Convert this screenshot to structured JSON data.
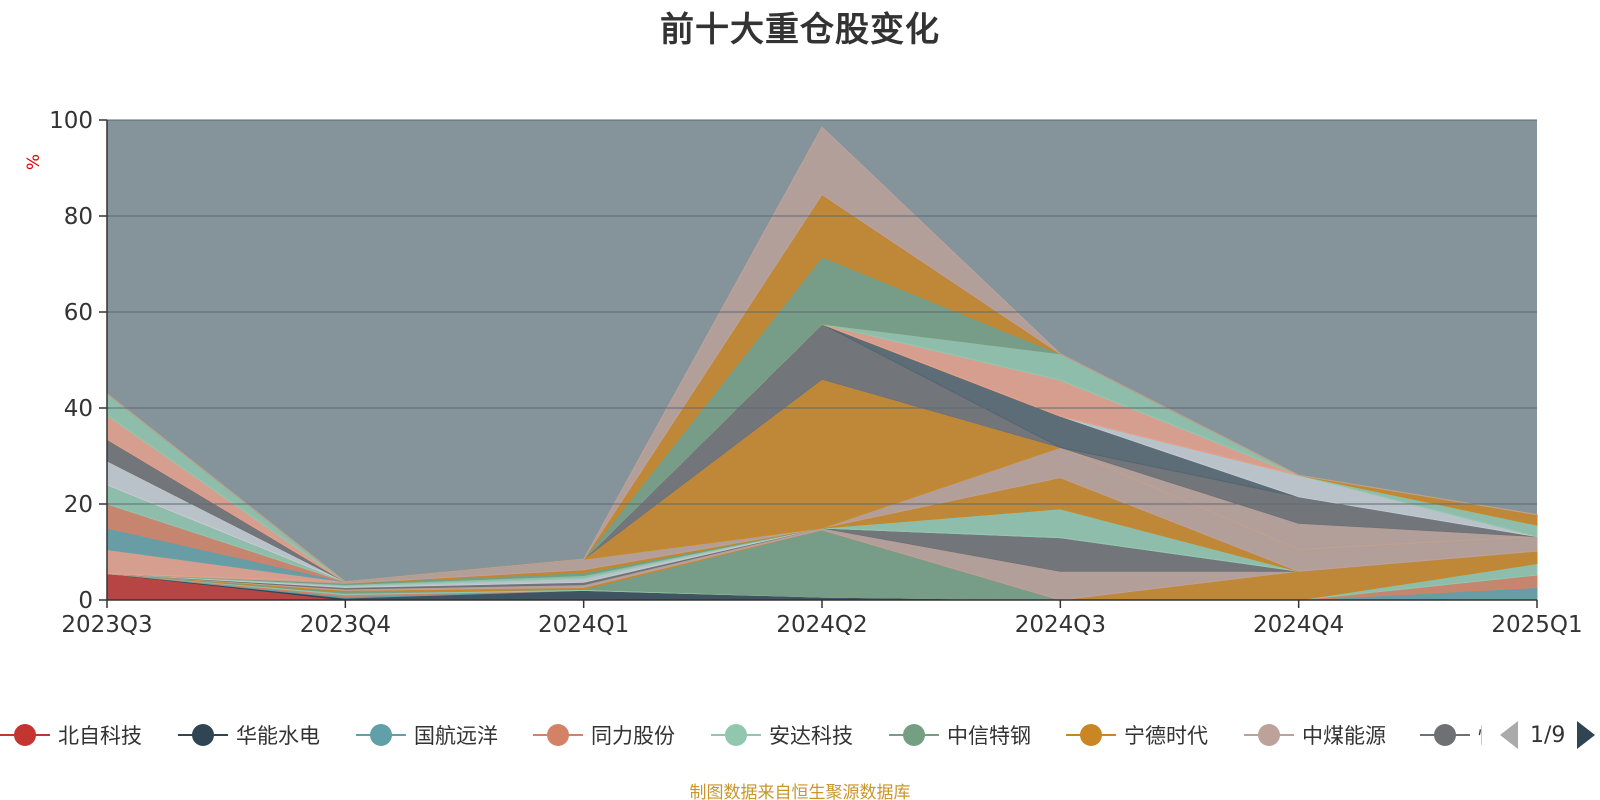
{
  "title": "前十大重仓股变化",
  "source_note": "制图数据来自恒生聚源数据库",
  "chart_data": {
    "type": "area",
    "stacked": true,
    "ylabel": "%",
    "ylim": [
      0,
      100
    ],
    "yticks": [
      0,
      20,
      40,
      60,
      80,
      100
    ],
    "grid": true,
    "x": [
      "2023Q3",
      "2023Q4",
      "2024Q1",
      "2024Q2",
      "2024Q3",
      "2024Q4",
      "2025Q1"
    ],
    "background_color": "#85939a",
    "series": [
      {
        "name": "北自科技",
        "color": "#c23531",
        "values": [
          5.5,
          0,
          0,
          0,
          0,
          0,
          0
        ]
      },
      {
        "name": "华能水电",
        "color": "#2f4554",
        "values": [
          0,
          0.4,
          2.0,
          0.6,
          0,
          0,
          0
        ]
      },
      {
        "name": "国航远洋",
        "color": "#61a0a8",
        "values": [
          0,
          0.3,
          0,
          0,
          0,
          0,
          2.6
        ]
      },
      {
        "name": "同力股份",
        "color": "#d48265",
        "values": [
          0,
          0.4,
          0,
          0,
          0,
          0,
          2.6
        ]
      },
      {
        "name": "安达科技",
        "color": "#91c7ae",
        "values": [
          0,
          0.3,
          0.2,
          0,
          0,
          0,
          2.4
        ]
      },
      {
        "name": "中信特钢",
        "color": "#749f83",
        "values": [
          0,
          0.3,
          0,
          14.0,
          0,
          0,
          0
        ]
      },
      {
        "name": "宁德时代",
        "color": "#ca8622",
        "values": [
          0,
          0.3,
          0.4,
          0,
          0,
          6.0,
          2.6
        ]
      },
      {
        "name": "中煤能源",
        "color": "#bda29a",
        "values": [
          0,
          0.3,
          0.6,
          0.4,
          6.0,
          0,
          0
        ]
      },
      {
        "name": "",
        "color": "#6e7074",
        "values": [
          0,
          0.3,
          0.5,
          0,
          7.0,
          0,
          0
        ]
      },
      {
        "name": "",
        "color": "#546570",
        "values": [
          0,
          0,
          0,
          0,
          0,
          0,
          0
        ]
      },
      {
        "name": "",
        "color": "#c4ccd3",
        "values": [
          0,
          0.3,
          0.8,
          0,
          0,
          0,
          0
        ]
      },
      {
        "name": "",
        "color": "#91c7ae",
        "values": [
          0,
          0.3,
          0.6,
          0,
          6.0,
          0,
          0
        ]
      },
      {
        "name": "",
        "color": "#749f83",
        "values": [
          0,
          0.3,
          0.6,
          0,
          0,
          0,
          0
        ]
      },
      {
        "name": "",
        "color": "#ca8622",
        "values": [
          0,
          0,
          0.6,
          0,
          6.5,
          0,
          0
        ]
      },
      {
        "name": "",
        "color": "#bda29a",
        "values": [
          0,
          0.3,
          2.2,
          0,
          6.3,
          4.5,
          3.0
        ]
      },
      {
        "name": "",
        "color": "#6e7074",
        "values": [
          0,
          0,
          0,
          0,
          0,
          0,
          0
        ]
      },
      {
        "name": "",
        "color": "#e7a18b",
        "values": [
          5.0,
          0,
          0,
          0,
          0,
          0,
          0
        ]
      },
      {
        "name": "",
        "color": "#61a0a8",
        "values": [
          4.5,
          0,
          0,
          0,
          0,
          0,
          0
        ]
      },
      {
        "name": "",
        "color": "#d48265",
        "values": [
          5.0,
          0,
          0,
          0,
          0,
          0,
          0
        ]
      },
      {
        "name": "",
        "color": "#91c7ae",
        "values": [
          4.0,
          0,
          0,
          0,
          0,
          0,
          0
        ]
      },
      {
        "name": "",
        "color": "#749f83",
        "values": [
          0,
          0,
          0,
          0,
          0,
          0,
          0
        ]
      },
      {
        "name": "",
        "color": "#ca8622",
        "values": [
          0,
          0,
          0,
          31.0,
          0,
          0,
          0
        ]
      },
      {
        "name": "",
        "color": "#bda29a",
        "values": [
          0,
          0,
          0,
          0,
          0,
          5.5,
          0
        ]
      },
      {
        "name": "",
        "color": "#6e7074",
        "values": [
          0,
          0,
          0,
          11.5,
          0,
          5.5,
          0
        ]
      },
      {
        "name": "",
        "color": "#546570",
        "values": [
          0,
          0,
          0,
          0,
          6.5,
          0,
          0
        ]
      },
      {
        "name": "",
        "color": "#c4ccd3",
        "values": [
          0,
          0,
          0,
          0,
          0,
          4.5,
          0
        ]
      },
      {
        "name": "",
        "color": "#91c7ae",
        "values": [
          0,
          0,
          0,
          0,
          0,
          0,
          2.4
        ]
      },
      {
        "name": "",
        "color": "#749f83",
        "values": [
          0,
          0,
          0,
          0,
          0,
          0,
          0
        ]
      },
      {
        "name": "",
        "color": "#ca8622",
        "values": [
          0,
          0,
          0,
          0,
          0,
          0,
          2.2
        ]
      },
      {
        "name": "",
        "color": "#bda29a",
        "values": [
          0,
          0,
          0,
          0,
          0,
          0,
          0
        ]
      },
      {
        "name": "",
        "color": "#e7a18b",
        "values": [
          0,
          0,
          0,
          0,
          7.5,
          0,
          0
        ]
      },
      {
        "name": "",
        "color": "#61a0a8",
        "values": [
          0,
          0,
          0,
          0,
          0,
          0,
          0
        ]
      },
      {
        "name": "",
        "color": "#d48265",
        "values": [
          0,
          0,
          0,
          0,
          0,
          0,
          0
        ]
      },
      {
        "name": "",
        "color": "#91c7ae",
        "values": [
          0,
          0,
          0,
          0,
          5.5,
          0,
          0
        ]
      },
      {
        "name": "",
        "color": "#546570",
        "values": [
          0,
          0,
          0,
          0,
          0,
          0,
          0
        ]
      },
      {
        "name": "",
        "color": "#c4ccd3",
        "values": [
          5.0,
          0,
          0,
          0,
          0,
          0,
          0
        ]
      },
      {
        "name": "",
        "color": "#6e7074",
        "values": [
          4.5,
          0,
          0,
          0,
          0,
          0,
          0
        ]
      },
      {
        "name": "",
        "color": "#e7a18b",
        "values": [
          5.0,
          0,
          0,
          0,
          0,
          0,
          0
        ]
      },
      {
        "name": "",
        "color": "#91c7ae",
        "values": [
          4.5,
          0,
          0,
          0,
          0,
          0,
          0
        ]
      },
      {
        "name": "",
        "color": "#749f83",
        "values": [
          0,
          0,
          0,
          14.0,
          0,
          0,
          0
        ]
      },
      {
        "name": "",
        "color": "#ca8622",
        "values": [
          0,
          0,
          0,
          13.0,
          0,
          0,
          0
        ]
      },
      {
        "name": "",
        "color": "#bda29a",
        "values": [
          0,
          0,
          0,
          14.0,
          0,
          0,
          0
        ]
      }
    ]
  },
  "legend": {
    "page_text": "1/9",
    "items": [
      {
        "label": "北自科技",
        "color": "#c23531"
      },
      {
        "label": "华能水电",
        "color": "#2f4554"
      },
      {
        "label": "国航远洋",
        "color": "#61a0a8"
      },
      {
        "label": "同力股份",
        "color": "#d48265"
      },
      {
        "label": "安达科技",
        "color": "#91c7ae"
      },
      {
        "label": "中信特钢",
        "color": "#749f83"
      },
      {
        "label": "宁德时代",
        "color": "#ca8622"
      },
      {
        "label": "中煤能源",
        "color": "#bda29a"
      },
      {
        "label": "恒",
        "color": "#6e7074"
      }
    ]
  }
}
